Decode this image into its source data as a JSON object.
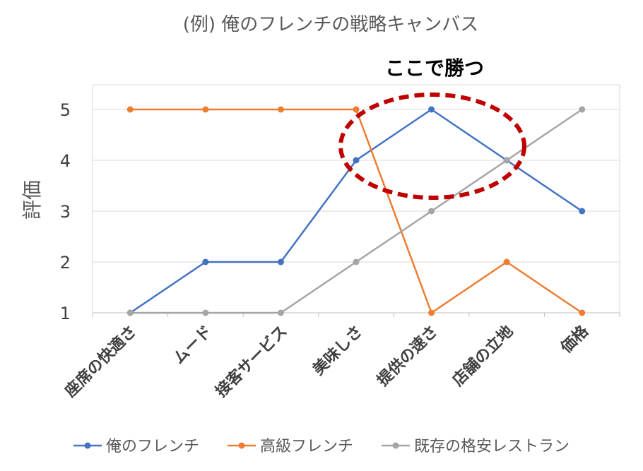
{
  "chart_data": {
    "type": "line",
    "title": "(例) 俺のフレンチの戦略キャンバス",
    "xlabel": "",
    "ylabel": "評価",
    "ylim": [
      1,
      5
    ],
    "yticks": [
      "1",
      "2",
      "3",
      "4",
      "5"
    ],
    "categories": [
      "座席の快適さ",
      "ムード",
      "接客サービス",
      "美味しさ",
      "提供の速さ",
      "店舗の立地",
      "価格"
    ],
    "series": [
      {
        "name": "俺のフレンチ",
        "color": "#4472C4",
        "values": [
          1,
          2,
          2,
          4,
          5,
          4,
          3
        ]
      },
      {
        "name": "高級フレンチ",
        "color": "#ED7D31",
        "values": [
          5,
          5,
          5,
          5,
          1,
          2,
          1
        ]
      },
      {
        "name": "既存の格安レストラン",
        "color": "#A5A5A5",
        "values": [
          1,
          1,
          1,
          2,
          3,
          4,
          5
        ]
      }
    ],
    "annotation": {
      "text": "ここで勝つ",
      "color": "#C00000"
    },
    "grid": true,
    "legend_position": "bottom"
  }
}
